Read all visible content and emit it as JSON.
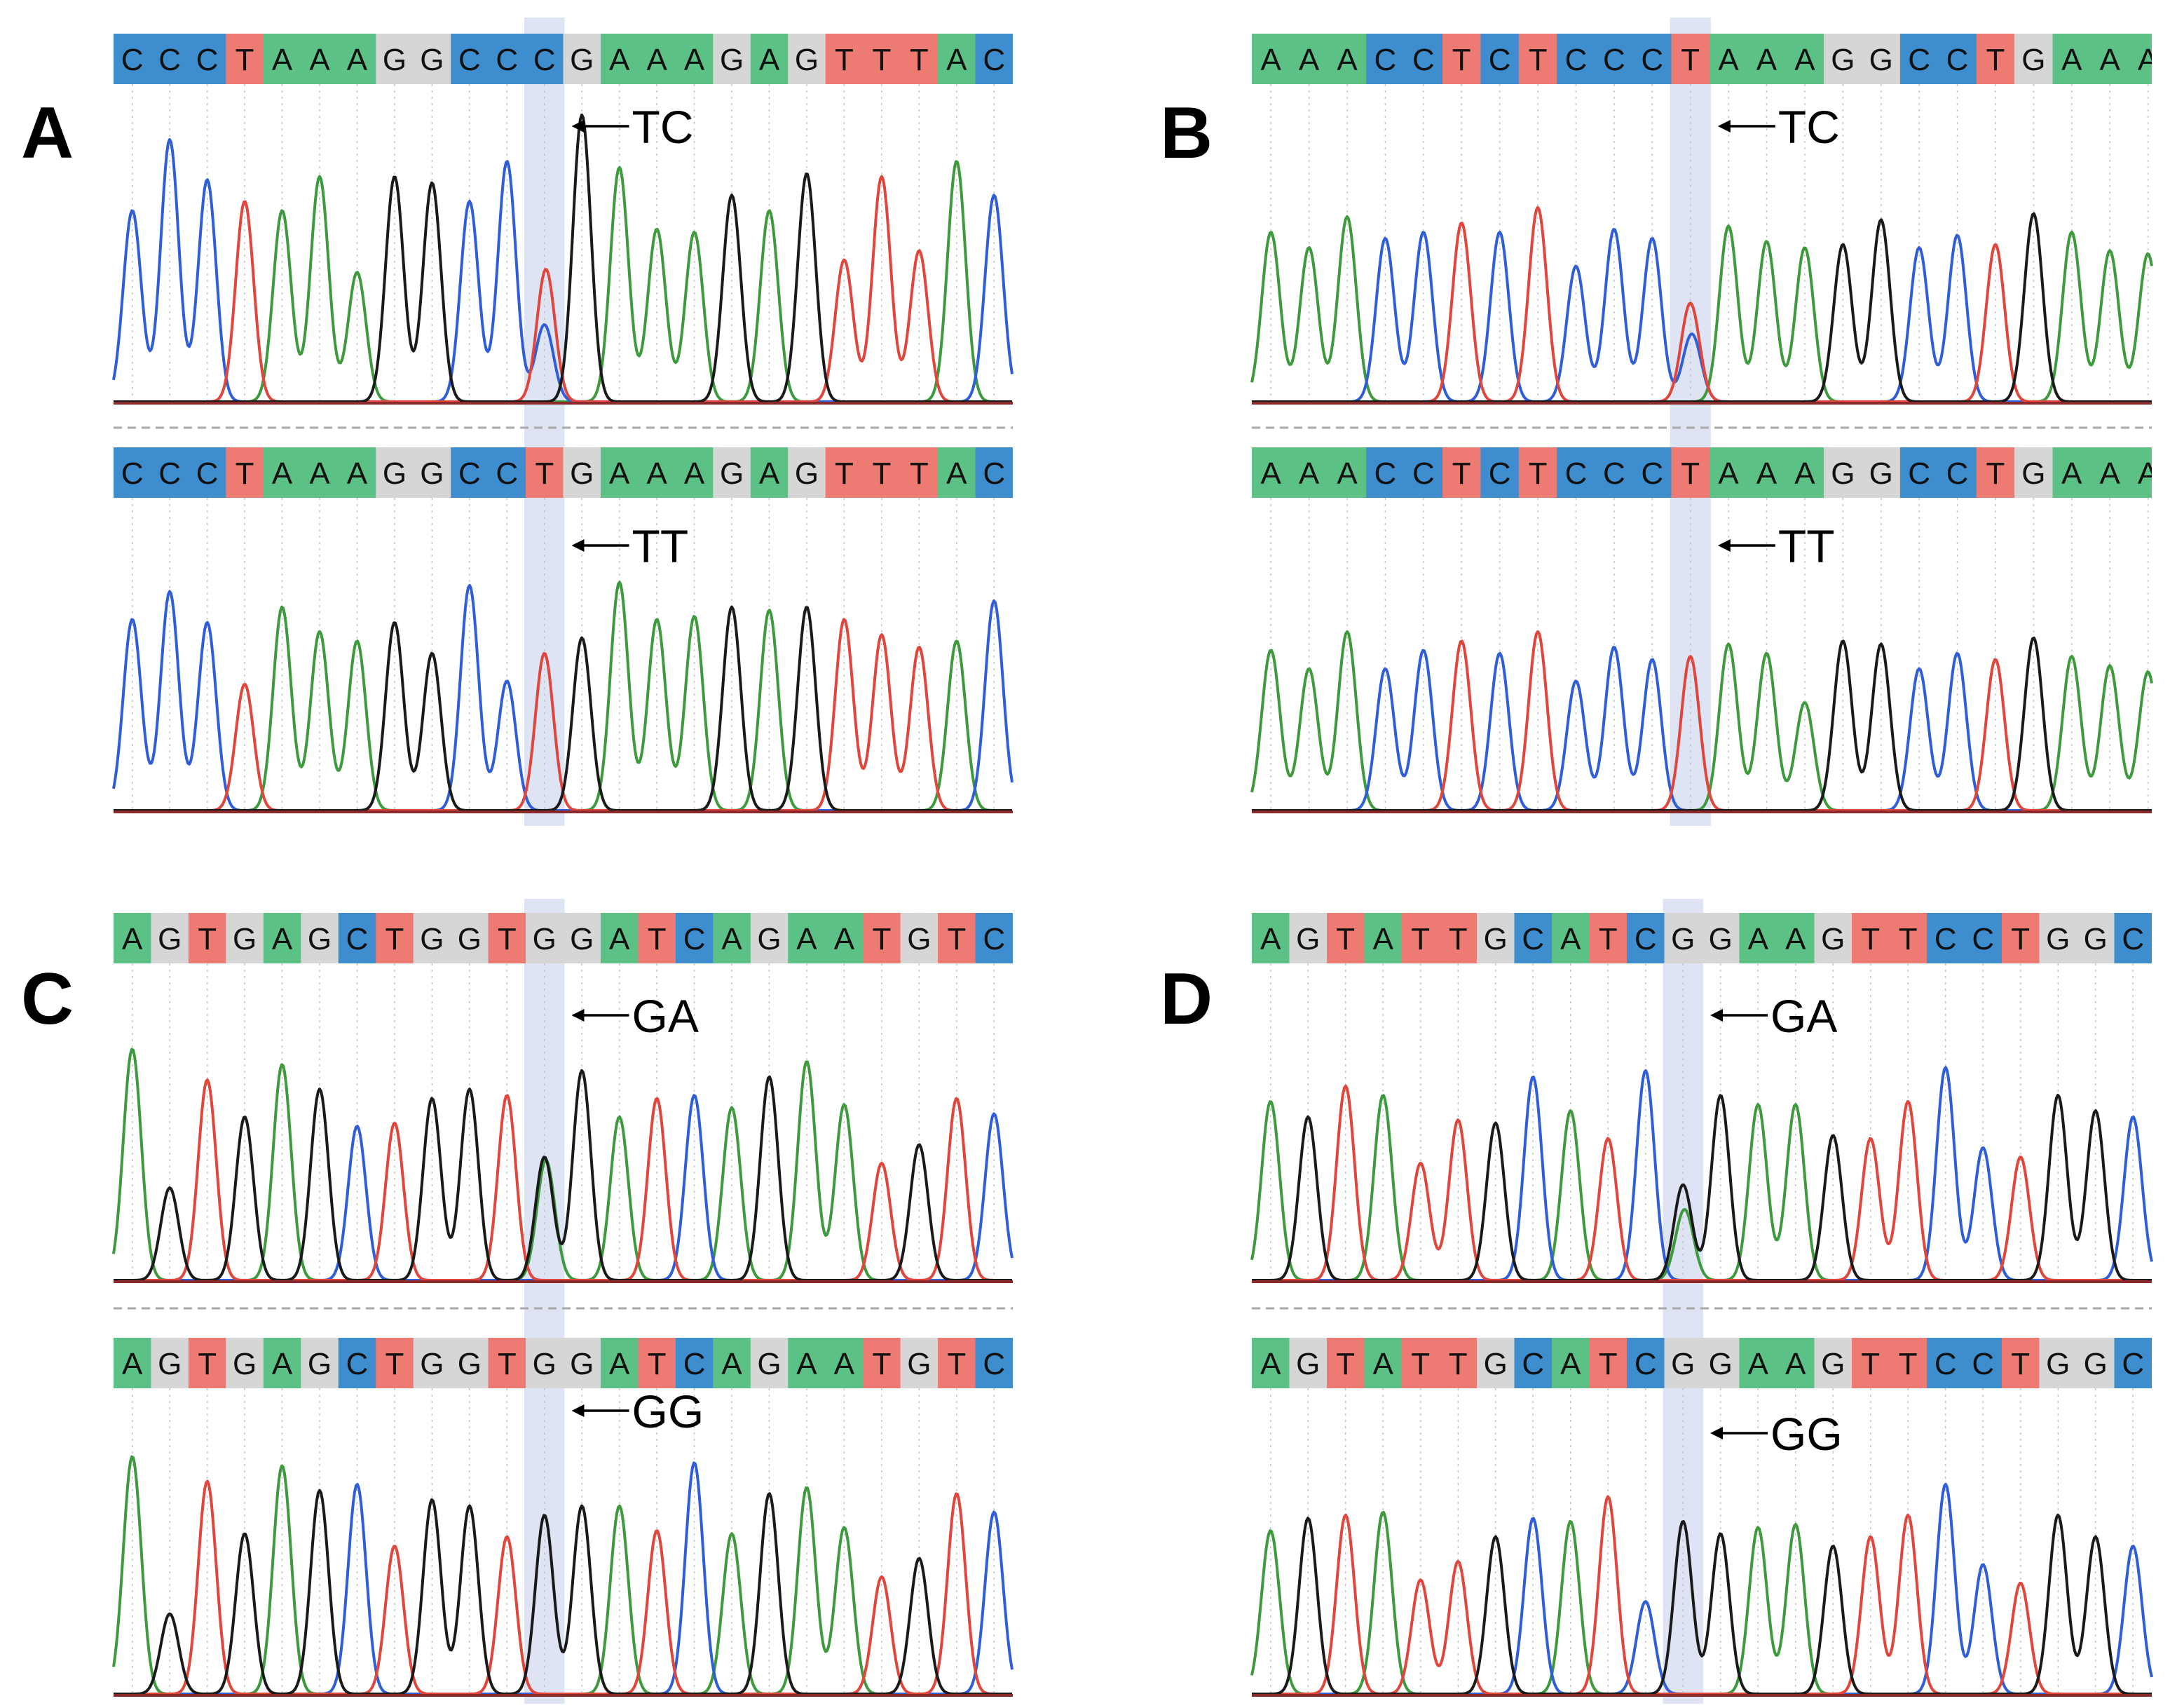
{
  "figure": {
    "panels": [
      {
        "letter": "A",
        "sequence": "CCCTAAAGGCCCGAAAGAGTTTAC",
        "partial_last_base": false,
        "highlight_index": 11,
        "tracks": [
          {
            "row_sequence": "CCCTAAAGGCCCGAAAGAGTTTAC",
            "genotype": "TC",
            "peaks": [
              {
                "base": "C",
                "h": 0.62
              },
              {
                "base": "C",
                "h": 0.85
              },
              {
                "base": "C",
                "h": 0.72
              },
              {
                "base": "T",
                "h": 0.65
              },
              {
                "base": "A",
                "h": 0.62
              },
              {
                "base": "A",
                "h": 0.73
              },
              {
                "base": "A",
                "h": 0.42
              },
              {
                "base": "G",
                "h": 0.73
              },
              {
                "base": "G",
                "h": 0.71
              },
              {
                "base": "C",
                "h": 0.65
              },
              {
                "base": "C",
                "h": 0.78
              },
              {
                "base": "C",
                "h": 0.25,
                "alt": "T",
                "alt_h": 0.43
              },
              {
                "base": "G",
                "h": 0.93
              },
              {
                "base": "A",
                "h": 0.76
              },
              {
                "base": "A",
                "h": 0.56
              },
              {
                "base": "A",
                "h": 0.55
              },
              {
                "base": "G",
                "h": 0.67
              },
              {
                "base": "A",
                "h": 0.62
              },
              {
                "base": "G",
                "h": 0.74
              },
              {
                "base": "T",
                "h": 0.46
              },
              {
                "base": "T",
                "h": 0.73
              },
              {
                "base": "T",
                "h": 0.49
              },
              {
                "base": "A",
                "h": 0.78
              },
              {
                "base": "C",
                "h": 0.67
              }
            ]
          },
          {
            "row_sequence": "CCCTAAAGGCCTGAAAGAGTTTAC",
            "genotype": "TT",
            "peaks": [
              {
                "base": "C",
                "h": 0.62
              },
              {
                "base": "C",
                "h": 0.71
              },
              {
                "base": "C",
                "h": 0.61
              },
              {
                "base": "T",
                "h": 0.41
              },
              {
                "base": "A",
                "h": 0.66
              },
              {
                "base": "A",
                "h": 0.58
              },
              {
                "base": "A",
                "h": 0.55
              },
              {
                "base": "G",
                "h": 0.61
              },
              {
                "base": "G",
                "h": 0.51
              },
              {
                "base": "C",
                "h": 0.73
              },
              {
                "base": "C",
                "h": 0.42
              },
              {
                "base": "T",
                "h": 0.51
              },
              {
                "base": "G",
                "h": 0.56
              },
              {
                "base": "A",
                "h": 0.74
              },
              {
                "base": "A",
                "h": 0.62
              },
              {
                "base": "A",
                "h": 0.63
              },
              {
                "base": "G",
                "h": 0.66
              },
              {
                "base": "A",
                "h": 0.65
              },
              {
                "base": "G",
                "h": 0.66
              },
              {
                "base": "T",
                "h": 0.62
              },
              {
                "base": "T",
                "h": 0.57
              },
              {
                "base": "T",
                "h": 0.53
              },
              {
                "base": "A",
                "h": 0.55
              },
              {
                "base": "C",
                "h": 0.68
              }
            ]
          }
        ]
      },
      {
        "letter": "B",
        "sequence": "AAACCTCTCCCTAAAGGCCTGAAA",
        "partial_last_base": true,
        "highlight_index": 11,
        "tracks": [
          {
            "row_sequence": "AAACCTCTCCCTAAAGGCCTGAAA",
            "genotype": "TC",
            "peaks": [
              {
                "base": "A",
                "h": 0.55
              },
              {
                "base": "A",
                "h": 0.5
              },
              {
                "base": "A",
                "h": 0.6
              },
              {
                "base": "C",
                "h": 0.53
              },
              {
                "base": "C",
                "h": 0.55
              },
              {
                "base": "T",
                "h": 0.58
              },
              {
                "base": "C",
                "h": 0.55
              },
              {
                "base": "T",
                "h": 0.63
              },
              {
                "base": "C",
                "h": 0.44
              },
              {
                "base": "C",
                "h": 0.56
              },
              {
                "base": "C",
                "h": 0.53
              },
              {
                "base": "T",
                "h": 0.32,
                "alt": "C",
                "alt_h": 0.22
              },
              {
                "base": "A",
                "h": 0.57
              },
              {
                "base": "A",
                "h": 0.52
              },
              {
                "base": "A",
                "h": 0.5
              },
              {
                "base": "G",
                "h": 0.51
              },
              {
                "base": "G",
                "h": 0.59
              },
              {
                "base": "C",
                "h": 0.5
              },
              {
                "base": "C",
                "h": 0.54
              },
              {
                "base": "T",
                "h": 0.51
              },
              {
                "base": "G",
                "h": 0.61
              },
              {
                "base": "A",
                "h": 0.55
              },
              {
                "base": "A",
                "h": 0.49
              },
              {
                "base": "A",
                "h": 0.48
              }
            ]
          },
          {
            "row_sequence": "AAACCTCTCCCTAAAGGCCTGAAA",
            "genotype": "TT",
            "peaks": [
              {
                "base": "A",
                "h": 0.52
              },
              {
                "base": "A",
                "h": 0.46
              },
              {
                "base": "A",
                "h": 0.58
              },
              {
                "base": "C",
                "h": 0.46
              },
              {
                "base": "C",
                "h": 0.52
              },
              {
                "base": "T",
                "h": 0.55
              },
              {
                "base": "C",
                "h": 0.51
              },
              {
                "base": "T",
                "h": 0.58
              },
              {
                "base": "C",
                "h": 0.42
              },
              {
                "base": "C",
                "h": 0.53
              },
              {
                "base": "C",
                "h": 0.49
              },
              {
                "base": "T",
                "h": 0.5
              },
              {
                "base": "A",
                "h": 0.54
              },
              {
                "base": "A",
                "h": 0.51
              },
              {
                "base": "A",
                "h": 0.35
              },
              {
                "base": "G",
                "h": 0.55
              },
              {
                "base": "G",
                "h": 0.54
              },
              {
                "base": "C",
                "h": 0.46
              },
              {
                "base": "C",
                "h": 0.51
              },
              {
                "base": "T",
                "h": 0.49
              },
              {
                "base": "G",
                "h": 0.56
              },
              {
                "base": "A",
                "h": 0.5
              },
              {
                "base": "A",
                "h": 0.47
              },
              {
                "base": "A",
                "h": 0.45
              }
            ]
          }
        ]
      },
      {
        "letter": "C",
        "sequence": "AGTGAGCTGGTGGATCAGAATGTC",
        "partial_last_base": false,
        "highlight_index": 11,
        "tracks": [
          {
            "row_sequence": "AGTGAGCTGGTGGATCAGAATGTC",
            "genotype": "GA",
            "peaks": [
              {
                "base": "A",
                "h": 0.75
              },
              {
                "base": "G",
                "h": 0.3
              },
              {
                "base": "T",
                "h": 0.65
              },
              {
                "base": "G",
                "h": 0.53
              },
              {
                "base": "A",
                "h": 0.7
              },
              {
                "base": "G",
                "h": 0.62
              },
              {
                "base": "C",
                "h": 0.5
              },
              {
                "base": "T",
                "h": 0.51
              },
              {
                "base": "G",
                "h": 0.59
              },
              {
                "base": "G",
                "h": 0.62
              },
              {
                "base": "T",
                "h": 0.6
              },
              {
                "base": "G",
                "h": 0.4,
                "alt": "A",
                "alt_h": 0.39
              },
              {
                "base": "G",
                "h": 0.68
              },
              {
                "base": "A",
                "h": 0.53
              },
              {
                "base": "T",
                "h": 0.59
              },
              {
                "base": "C",
                "h": 0.6
              },
              {
                "base": "A",
                "h": 0.56
              },
              {
                "base": "G",
                "h": 0.66
              },
              {
                "base": "A",
                "h": 0.71
              },
              {
                "base": "A",
                "h": 0.57
              },
              {
                "base": "T",
                "h": 0.38
              },
              {
                "base": "G",
                "h": 0.44
              },
              {
                "base": "T",
                "h": 0.59
              },
              {
                "base": "C",
                "h": 0.54
              }
            ]
          },
          {
            "row_sequence": "AGTGAGCTGGTGGATCAGAATGTC",
            "genotype": "GG",
            "peaks": [
              {
                "base": "A",
                "h": 0.77
              },
              {
                "base": "G",
                "h": 0.26
              },
              {
                "base": "T",
                "h": 0.69
              },
              {
                "base": "G",
                "h": 0.52
              },
              {
                "base": "A",
                "h": 0.74
              },
              {
                "base": "G",
                "h": 0.66
              },
              {
                "base": "C",
                "h": 0.68
              },
              {
                "base": "T",
                "h": 0.48
              },
              {
                "base": "G",
                "h": 0.63
              },
              {
                "base": "G",
                "h": 0.61
              },
              {
                "base": "T",
                "h": 0.51
              },
              {
                "base": "G",
                "h": 0.58
              },
              {
                "base": "G",
                "h": 0.61
              },
              {
                "base": "A",
                "h": 0.61
              },
              {
                "base": "T",
                "h": 0.53
              },
              {
                "base": "C",
                "h": 0.75
              },
              {
                "base": "A",
                "h": 0.52
              },
              {
                "base": "G",
                "h": 0.65
              },
              {
                "base": "A",
                "h": 0.67
              },
              {
                "base": "A",
                "h": 0.54
              },
              {
                "base": "T",
                "h": 0.38
              },
              {
                "base": "G",
                "h": 0.44
              },
              {
                "base": "T",
                "h": 0.65
              },
              {
                "base": "C",
                "h": 0.59
              }
            ]
          }
        ]
      },
      {
        "letter": "D",
        "sequence": "AGTATTGCATCGGAAGTTCCTGGC",
        "partial_last_base": false,
        "highlight_index": 11,
        "tracks": [
          {
            "row_sequence": "AGTATTGCATCGGAAGTTCCTGGC",
            "genotype": "GA",
            "peaks": [
              {
                "base": "A",
                "h": 0.58
              },
              {
                "base": "G",
                "h": 0.53
              },
              {
                "base": "T",
                "h": 0.63
              },
              {
                "base": "A",
                "h": 0.6
              },
              {
                "base": "T",
                "h": 0.38
              },
              {
                "base": "T",
                "h": 0.52
              },
              {
                "base": "G",
                "h": 0.51
              },
              {
                "base": "C",
                "h": 0.66
              },
              {
                "base": "A",
                "h": 0.55
              },
              {
                "base": "T",
                "h": 0.46
              },
              {
                "base": "C",
                "h": 0.68
              },
              {
                "base": "G",
                "h": 0.31,
                "alt": "A",
                "alt_h": 0.23
              },
              {
                "base": "G",
                "h": 0.6
              },
              {
                "base": "A",
                "h": 0.57
              },
              {
                "base": "A",
                "h": 0.57
              },
              {
                "base": "G",
                "h": 0.47
              },
              {
                "base": "T",
                "h": 0.46
              },
              {
                "base": "T",
                "h": 0.58
              },
              {
                "base": "C",
                "h": 0.69
              },
              {
                "base": "C",
                "h": 0.43
              },
              {
                "base": "T",
                "h": 0.4
              },
              {
                "base": "G",
                "h": 0.6
              },
              {
                "base": "G",
                "h": 0.55
              },
              {
                "base": "C",
                "h": 0.53
              }
            ]
          },
          {
            "row_sequence": "AGTATTGCATCGGAAGTTCCTGGC",
            "genotype": "GG",
            "peaks": [
              {
                "base": "A",
                "h": 0.53
              },
              {
                "base": "G",
                "h": 0.57
              },
              {
                "base": "T",
                "h": 0.58
              },
              {
                "base": "A",
                "h": 0.59
              },
              {
                "base": "T",
                "h": 0.37
              },
              {
                "base": "T",
                "h": 0.43
              },
              {
                "base": "G",
                "h": 0.51
              },
              {
                "base": "C",
                "h": 0.57
              },
              {
                "base": "A",
                "h": 0.56
              },
              {
                "base": "T",
                "h": 0.64
              },
              {
                "base": "C",
                "h": 0.3
              },
              {
                "base": "G",
                "h": 0.56
              },
              {
                "base": "G",
                "h": 0.52
              },
              {
                "base": "A",
                "h": 0.54
              },
              {
                "base": "A",
                "h": 0.55
              },
              {
                "base": "G",
                "h": 0.48
              },
              {
                "base": "T",
                "h": 0.51
              },
              {
                "base": "T",
                "h": 0.58
              },
              {
                "base": "C",
                "h": 0.68
              },
              {
                "base": "C",
                "h": 0.42
              },
              {
                "base": "T",
                "h": 0.36
              },
              {
                "base": "G",
                "h": 0.58
              },
              {
                "base": "G",
                "h": 0.51
              },
              {
                "base": "C",
                "h": 0.48
              }
            ]
          }
        ]
      }
    ]
  },
  "colors": {
    "A": "#3d9a3d",
    "C": "#2f5ed8",
    "G": "#1a1a1a",
    "T": "#e0463c"
  },
  "sequence_box_colors": {
    "A": "#5cc184",
    "C": "#3e8ecf",
    "G": "#d6d6d6",
    "T": "#ee7a74"
  },
  "highlight_color": "#dfe4f4",
  "baseline_color": "#8b2a2a",
  "separator_color": "#a8a8a8",
  "arrow_icon": "left-arrow-icon"
}
